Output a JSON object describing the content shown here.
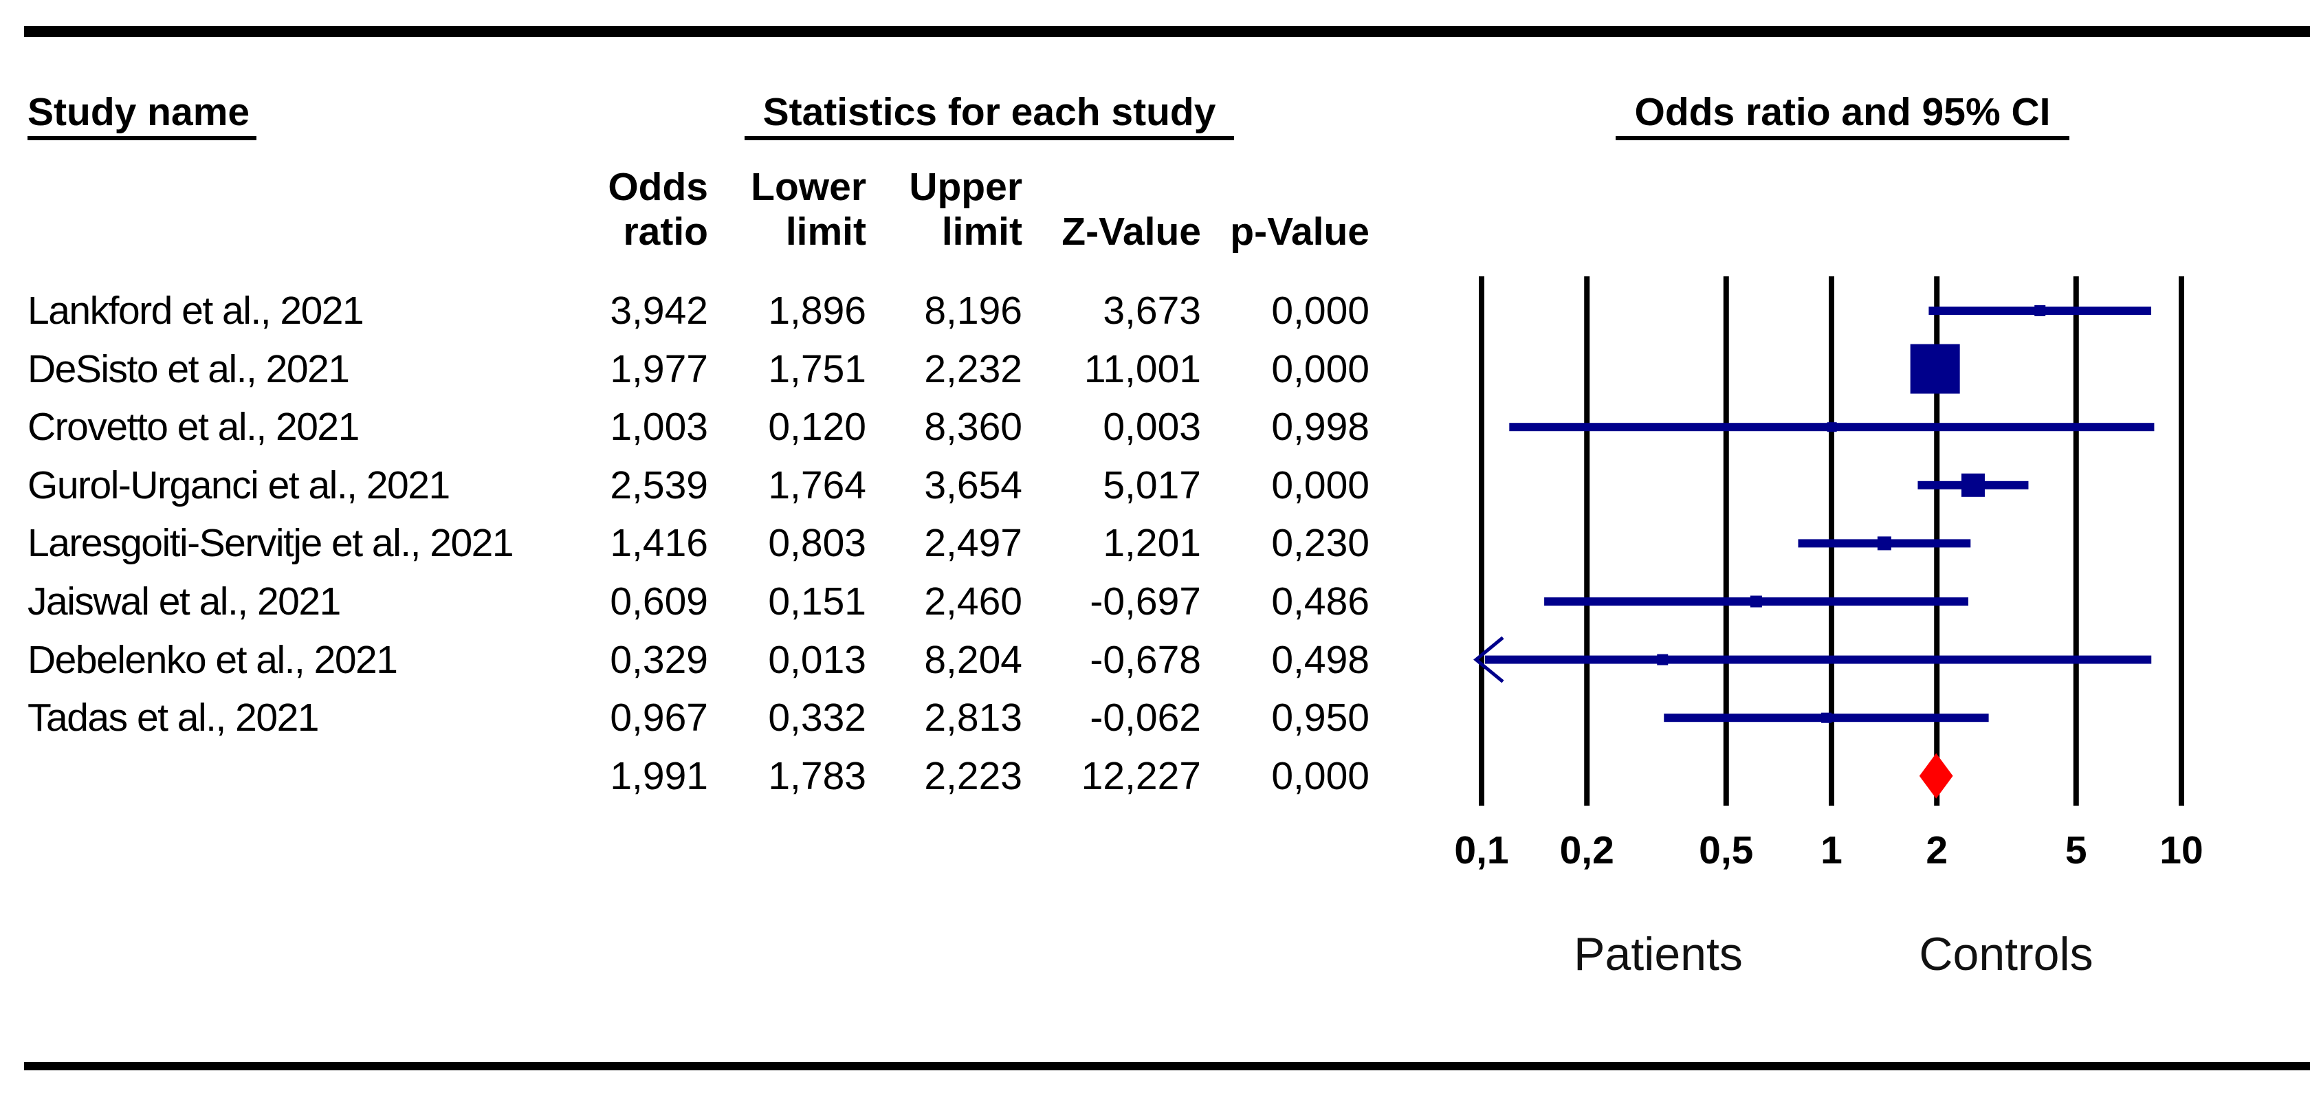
{
  "figure": {
    "left_header": "Study name",
    "center_header": "Statistics for each study",
    "right_header": "Odds ratio and 95% CI",
    "group_left": "Patients",
    "group_right": "Controls"
  },
  "columns": {
    "line1": [
      "Odds",
      "Lower",
      "Upper",
      "",
      ""
    ],
    "line2": [
      "ratio",
      "limit",
      "limit",
      "Z-Value",
      "p-Value"
    ]
  },
  "colors": {
    "ci": "#00008B",
    "summary_diamond": "#FF0000",
    "grid": "#000000",
    "text": "#000000"
  },
  "chart_data": {
    "type": "forest",
    "title": "Odds ratio and 95% CI",
    "x_axis": {
      "scale": "log10",
      "range": [
        0.1,
        10
      ],
      "ticks": [
        0.1,
        0.2,
        0.5,
        1,
        2,
        5,
        10
      ],
      "tick_labels": [
        "0,1",
        "0,2",
        "0,5",
        "1",
        "2",
        "5",
        "10"
      ]
    },
    "studies": [
      {
        "name": "Lankford et al., 2021",
        "or": 3.942,
        "lower": 1.896,
        "upper": 8.196,
        "z": 3.673,
        "p": 0.0,
        "display": {
          "or": "3,942",
          "lower": "1,896",
          "upper": "8,196",
          "z": "3,673",
          "p": "0,000"
        },
        "marker_size": 16,
        "clip_lower": false
      },
      {
        "name": "DeSisto et al., 2021",
        "or": 1.977,
        "lower": 1.751,
        "upper": 2.232,
        "z": 11.001,
        "p": 0.0,
        "display": {
          "or": "1,977",
          "lower": "1,751",
          "upper": "2,232",
          "z": "11,001",
          "p": "0,000"
        },
        "marker_size": 72,
        "clip_lower": false
      },
      {
        "name": "Crovetto et al., 2021",
        "or": 1.003,
        "lower": 0.12,
        "upper": 8.36,
        "z": 0.003,
        "p": 0.998,
        "display": {
          "or": "1,003",
          "lower": "0,120",
          "upper": "8,360",
          "z": "0,003",
          "p": "0,998"
        },
        "marker_size": 14,
        "clip_lower": false
      },
      {
        "name": "Gurol-Urganci et al., 2021",
        "or": 2.539,
        "lower": 1.764,
        "upper": 3.654,
        "z": 5.017,
        "p": 0.0,
        "display": {
          "or": "2,539",
          "lower": "1,764",
          "upper": "3,654",
          "z": "5,017",
          "p": "0,000"
        },
        "marker_size": 34,
        "clip_lower": false
      },
      {
        "name": "Laresgoiti-Servitje et al., 2021",
        "or": 1.416,
        "lower": 0.803,
        "upper": 2.497,
        "z": 1.201,
        "p": 0.23,
        "display": {
          "or": "1,416",
          "lower": "0,803",
          "upper": "2,497",
          "z": "1,201",
          "p": "0,230"
        },
        "marker_size": 20,
        "clip_lower": false
      },
      {
        "name": "Jaiswal et al., 2021",
        "or": 0.609,
        "lower": 0.151,
        "upper": 2.46,
        "z": -0.697,
        "p": 0.486,
        "display": {
          "or": "0,609",
          "lower": "0,151",
          "upper": "2,460",
          "z": "-0,697",
          "p": "0,486"
        },
        "marker_size": 17,
        "clip_lower": false
      },
      {
        "name": "Debelenko et al., 2021",
        "or": 0.329,
        "lower": 0.013,
        "upper": 8.204,
        "z": -0.678,
        "p": 0.498,
        "display": {
          "or": "0,329",
          "lower": "0,013",
          "upper": "8,204",
          "z": "-0,678",
          "p": "0,498"
        },
        "marker_size": 16,
        "clip_lower": true
      },
      {
        "name": "Tadas et al., 2021",
        "or": 0.967,
        "lower": 0.332,
        "upper": 2.813,
        "z": -0.062,
        "p": 0.95,
        "display": {
          "or": "0,967",
          "lower": "0,332",
          "upper": "2,813",
          "z": "-0,062",
          "p": "0,950"
        },
        "marker_size": 15,
        "clip_lower": false
      }
    ],
    "summary": {
      "or": 1.991,
      "lower": 1.783,
      "upper": 2.223,
      "z": 12.227,
      "p": 0.0,
      "display": {
        "or": "1,991",
        "lower": "1,783",
        "upper": "2,223",
        "z": "12,227",
        "p": "0,000"
      }
    }
  }
}
